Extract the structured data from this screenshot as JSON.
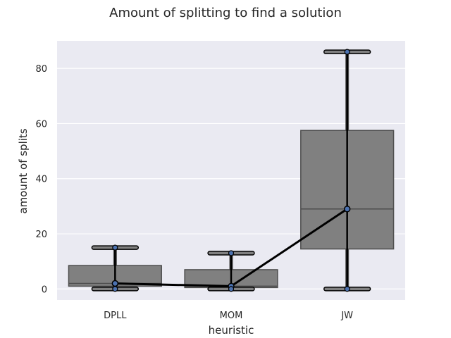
{
  "chart_data": {
    "type": "box",
    "title": "Amount of splitting to find a solution",
    "xlabel": "heuristic",
    "ylabel": "amount of splits",
    "categories": [
      "DPLL",
      "MOM",
      "JW"
    ],
    "boxes": [
      {
        "category": "DPLL",
        "whisker_low": 0,
        "q1": 1,
        "median": 2,
        "q3": 8.5,
        "whisker_high": 15
      },
      {
        "category": "MOM",
        "whisker_low": 0,
        "q1": 0.5,
        "median": 1,
        "q3": 7,
        "whisker_high": 13
      },
      {
        "category": "JW",
        "whisker_low": 0,
        "q1": 14.5,
        "median": 29,
        "q3": 57.5,
        "whisker_high": 86
      }
    ],
    "mean_line": {
      "values": [
        2,
        1,
        29
      ],
      "color": "#000000"
    },
    "extrema_points": [
      {
        "category": "DPLL",
        "values": [
          0,
          15
        ]
      },
      {
        "category": "MOM",
        "values": [
          0,
          13
        ]
      },
      {
        "category": "JW",
        "values": [
          0,
          86
        ]
      }
    ],
    "ylim": [
      -4,
      90
    ],
    "yticks": [
      0,
      20,
      40,
      60,
      80
    ],
    "grid": true,
    "colors": {
      "plot_background": "#eaeaf2",
      "grid": "#ffffff",
      "box_fill": "#808080",
      "box_edge": "#4d4d4d",
      "whisker": "#000000",
      "marker": "#4c72b0"
    }
  }
}
